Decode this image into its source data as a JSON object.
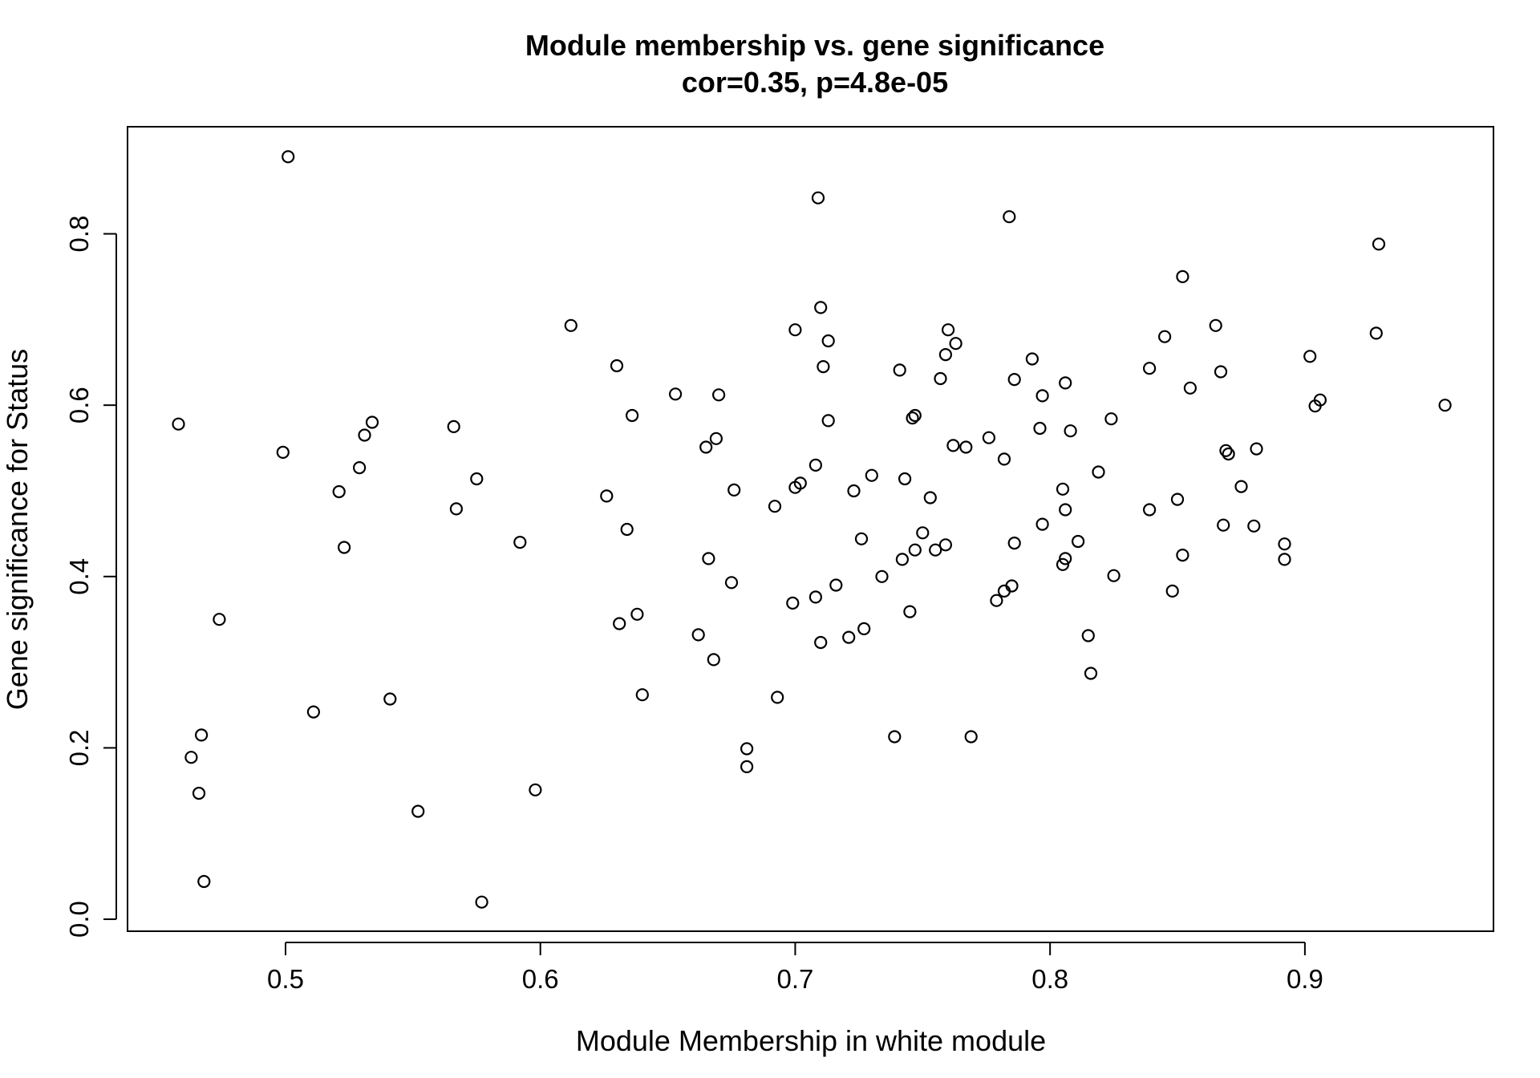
{
  "chart_data": {
    "type": "scatter",
    "title": "Module membership vs. gene significance",
    "subtitle": "cor=0.35, p=4.8e-05",
    "xlabel": "Module Membership in white module",
    "ylabel": "Gene significance for Status",
    "xlim": [
      0.438,
      0.974
    ],
    "ylim": [
      -0.014,
      0.925
    ],
    "x_ticks": [
      0.5,
      0.6,
      0.7,
      0.8,
      0.9
    ],
    "x_tick_labels": [
      "0.5",
      "0.6",
      "0.7",
      "0.8",
      "0.9"
    ],
    "y_ticks": [
      0.0,
      0.2,
      0.4,
      0.6,
      0.8
    ],
    "y_tick_labels": [
      "0.0",
      "0.2",
      "0.4",
      "0.6",
      "0.8"
    ],
    "grid": false,
    "legend": "none",
    "marker": "open-circle",
    "color": "#000000",
    "points": [
      [
        0.458,
        0.578
      ],
      [
        0.463,
        0.189
      ],
      [
        0.466,
        0.147
      ],
      [
        0.467,
        0.215
      ],
      [
        0.468,
        0.044
      ],
      [
        0.474,
        0.35
      ],
      [
        0.499,
        0.545
      ],
      [
        0.501,
        0.89
      ],
      [
        0.511,
        0.242
      ],
      [
        0.521,
        0.499
      ],
      [
        0.523,
        0.434
      ],
      [
        0.529,
        0.527
      ],
      [
        0.531,
        0.565
      ],
      [
        0.534,
        0.58
      ],
      [
        0.541,
        0.257
      ],
      [
        0.552,
        0.126
      ],
      [
        0.566,
        0.575
      ],
      [
        0.567,
        0.479
      ],
      [
        0.575,
        0.514
      ],
      [
        0.577,
        0.02
      ],
      [
        0.592,
        0.44
      ],
      [
        0.598,
        0.151
      ],
      [
        0.612,
        0.693
      ],
      [
        0.626,
        0.494
      ],
      [
        0.63,
        0.646
      ],
      [
        0.631,
        0.345
      ],
      [
        0.634,
        0.455
      ],
      [
        0.636,
        0.588
      ],
      [
        0.638,
        0.356
      ],
      [
        0.64,
        0.262
      ],
      [
        0.653,
        0.613
      ],
      [
        0.662,
        0.332
      ],
      [
        0.665,
        0.551
      ],
      [
        0.666,
        0.421
      ],
      [
        0.668,
        0.303
      ],
      [
        0.669,
        0.561
      ],
      [
        0.67,
        0.612
      ],
      [
        0.675,
        0.393
      ],
      [
        0.676,
        0.501
      ],
      [
        0.681,
        0.199
      ],
      [
        0.681,
        0.178
      ],
      [
        0.692,
        0.482
      ],
      [
        0.693,
        0.259
      ],
      [
        0.699,
        0.369
      ],
      [
        0.7,
        0.688
      ],
      [
        0.7,
        0.504
      ],
      [
        0.702,
        0.509
      ],
      [
        0.708,
        0.53
      ],
      [
        0.708,
        0.376
      ],
      [
        0.709,
        0.842
      ],
      [
        0.71,
        0.714
      ],
      [
        0.71,
        0.323
      ],
      [
        0.711,
        0.645
      ],
      [
        0.713,
        0.582
      ],
      [
        0.713,
        0.675
      ],
      [
        0.716,
        0.39
      ],
      [
        0.721,
        0.329
      ],
      [
        0.723,
        0.5
      ],
      [
        0.726,
        0.444
      ],
      [
        0.727,
        0.339
      ],
      [
        0.73,
        0.518
      ],
      [
        0.734,
        0.4
      ],
      [
        0.739,
        0.213
      ],
      [
        0.741,
        0.641
      ],
      [
        0.742,
        0.42
      ],
      [
        0.743,
        0.514
      ],
      [
        0.745,
        0.359
      ],
      [
        0.746,
        0.585
      ],
      [
        0.747,
        0.431
      ],
      [
        0.747,
        0.588
      ],
      [
        0.75,
        0.451
      ],
      [
        0.753,
        0.492
      ],
      [
        0.755,
        0.431
      ],
      [
        0.757,
        0.631
      ],
      [
        0.759,
        0.659
      ],
      [
        0.759,
        0.437
      ],
      [
        0.76,
        0.688
      ],
      [
        0.762,
        0.553
      ],
      [
        0.763,
        0.672
      ],
      [
        0.767,
        0.551
      ],
      [
        0.769,
        0.213
      ],
      [
        0.776,
        0.562
      ],
      [
        0.779,
        0.372
      ],
      [
        0.782,
        0.537
      ],
      [
        0.782,
        0.383
      ],
      [
        0.784,
        0.82
      ],
      [
        0.785,
        0.389
      ],
      [
        0.786,
        0.439
      ],
      [
        0.786,
        0.63
      ],
      [
        0.793,
        0.654
      ],
      [
        0.796,
        0.573
      ],
      [
        0.797,
        0.611
      ],
      [
        0.797,
        0.461
      ],
      [
        0.805,
        0.414
      ],
      [
        0.805,
        0.502
      ],
      [
        0.806,
        0.478
      ],
      [
        0.806,
        0.421
      ],
      [
        0.806,
        0.626
      ],
      [
        0.808,
        0.57
      ],
      [
        0.811,
        0.441
      ],
      [
        0.815,
        0.331
      ],
      [
        0.816,
        0.287
      ],
      [
        0.819,
        0.522
      ],
      [
        0.824,
        0.584
      ],
      [
        0.825,
        0.401
      ],
      [
        0.839,
        0.643
      ],
      [
        0.839,
        0.478
      ],
      [
        0.845,
        0.68
      ],
      [
        0.848,
        0.383
      ],
      [
        0.85,
        0.49
      ],
      [
        0.852,
        0.75
      ],
      [
        0.852,
        0.425
      ],
      [
        0.855,
        0.62
      ],
      [
        0.865,
        0.693
      ],
      [
        0.867,
        0.639
      ],
      [
        0.868,
        0.46
      ],
      [
        0.869,
        0.547
      ],
      [
        0.87,
        0.543
      ],
      [
        0.875,
        0.505
      ],
      [
        0.88,
        0.459
      ],
      [
        0.881,
        0.549
      ],
      [
        0.892,
        0.438
      ],
      [
        0.892,
        0.42
      ],
      [
        0.902,
        0.657
      ],
      [
        0.904,
        0.599
      ],
      [
        0.906,
        0.606
      ],
      [
        0.928,
        0.684
      ],
      [
        0.929,
        0.788
      ],
      [
        0.955,
        0.6
      ]
    ]
  }
}
